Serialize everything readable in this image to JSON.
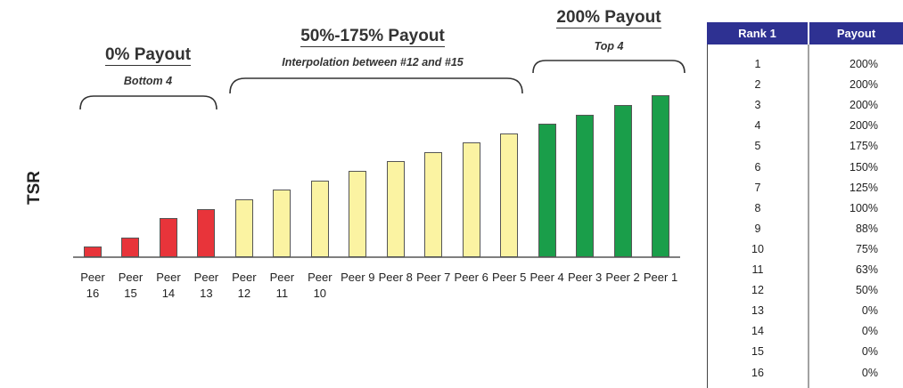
{
  "chart_data": {
    "type": "bar",
    "y_label": "TSR",
    "categories": [
      "Peer 16",
      "Peer 15",
      "Peer 14",
      "Peer 13",
      "Peer 12",
      "Peer 11",
      "Peer 10",
      "Peer 9",
      "Peer 8",
      "Peer 7",
      "Peer 6",
      "Peer 5",
      "Peer 4",
      "Peer 3",
      "Peer 2",
      "Peer 1"
    ],
    "values": [
      12,
      22,
      44,
      54,
      65,
      76,
      86,
      97,
      108,
      118,
      129,
      139,
      150,
      160,
      171,
      182
    ],
    "colors": [
      "#e8343a",
      "#e8343a",
      "#e8343a",
      "#e8343a",
      "#fbf3a2",
      "#fbf3a2",
      "#fbf3a2",
      "#fbf3a2",
      "#fbf3a2",
      "#fbf3a2",
      "#fbf3a2",
      "#fbf3a2",
      "#1a9e4a",
      "#1a9e4a",
      "#1a9e4a",
      "#1a9e4a"
    ],
    "ylim": [
      0,
      182
    ],
    "annotations": [
      {
        "title": "0% Payout",
        "subtitle": "Bottom 4"
      },
      {
        "title": "50%-175% Payout",
        "subtitle": "Interpolation between #12 and #15"
      },
      {
        "title": "200% Payout",
        "subtitle": "Top 4"
      }
    ]
  },
  "table": {
    "header": [
      "Rank 1",
      "Payout"
    ],
    "rows": [
      [
        1,
        "200%"
      ],
      [
        2,
        "200%"
      ],
      [
        3,
        "200%"
      ],
      [
        4,
        "200%"
      ],
      [
        5,
        "175%"
      ],
      [
        6,
        "150%"
      ],
      [
        7,
        "125%"
      ],
      [
        8,
        "100%"
      ],
      [
        9,
        "88%"
      ],
      [
        10,
        "75%"
      ],
      [
        11,
        "63%"
      ],
      [
        12,
        "50%"
      ],
      [
        13,
        "0%"
      ],
      [
        14,
        "0%"
      ],
      [
        15,
        "0%"
      ],
      [
        16,
        "0%"
      ]
    ]
  }
}
